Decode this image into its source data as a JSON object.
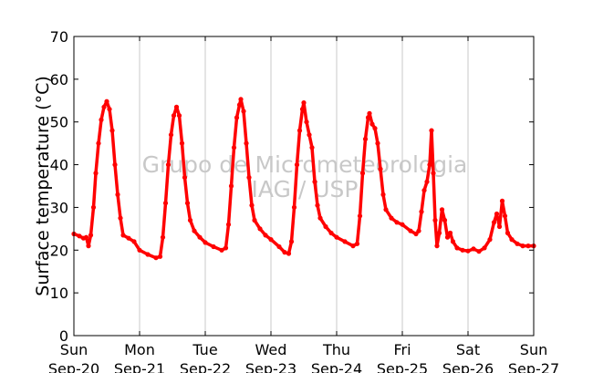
{
  "chart_data": {
    "type": "scatter",
    "title": "",
    "xlabel": "",
    "ylabel": "Surface temperature (°C)",
    "ylim": [
      0,
      70
    ],
    "yticks": [
      0,
      10,
      20,
      30,
      40,
      50,
      60,
      70
    ],
    "xticks": [
      {
        "day": "Sun",
        "date": "Sep-20"
      },
      {
        "day": "Mon",
        "date": "Sep-21"
      },
      {
        "day": "Tue",
        "date": "Sep-22"
      },
      {
        "day": "Wed",
        "date": "Sep-23"
      },
      {
        "day": "Thu",
        "date": "Sep-24"
      },
      {
        "day": "Fri",
        "date": "Sep-25"
      },
      {
        "day": "Sat",
        "date": "Sep-26"
      },
      {
        "day": "Sun",
        "date": "Sep-27"
      }
    ],
    "grid": "vertical",
    "watermark": [
      "Grupo de Micrometeorologia",
      "IAG / USP"
    ],
    "series": [
      {
        "color": "#ff0000",
        "marker": "dot",
        "points": [
          [
            "Sep-20 00:00",
            23.8
          ],
          [
            "Sep-20 02:00",
            23.3
          ],
          [
            "Sep-20 03:30",
            22.8
          ],
          [
            "Sep-20 04:30",
            23.0
          ],
          [
            "Sep-20 05:20",
            21.0
          ],
          [
            "Sep-20 06:10",
            23.5
          ],
          [
            "Sep-20 07:10",
            30.0
          ],
          [
            "Sep-20 08:00",
            38.0
          ],
          [
            "Sep-20 09:00",
            45.0
          ],
          [
            "Sep-20 10:00",
            50.5
          ],
          [
            "Sep-20 11:00",
            53.5
          ],
          [
            "Sep-20 12:00",
            54.8
          ],
          [
            "Sep-20 13:00",
            53.0
          ],
          [
            "Sep-20 14:00",
            48.0
          ],
          [
            "Sep-20 15:00",
            40.0
          ],
          [
            "Sep-20 16:00",
            33.0
          ],
          [
            "Sep-20 17:00",
            27.5
          ],
          [
            "Sep-20 18:00",
            23.5
          ],
          [
            "Sep-20 20:00",
            22.8
          ],
          [
            "Sep-20 22:00",
            22.0
          ],
          [
            "Sep-21 00:00",
            20.0
          ],
          [
            "Sep-21 03:00",
            19.0
          ],
          [
            "Sep-21 06:00",
            18.2
          ],
          [
            "Sep-21 07:30",
            18.5
          ],
          [
            "Sep-21 08:30",
            23.0
          ],
          [
            "Sep-21 09:30",
            31.0
          ],
          [
            "Sep-21 10:30",
            40.0
          ],
          [
            "Sep-21 11:30",
            47.0
          ],
          [
            "Sep-21 12:30",
            51.5
          ],
          [
            "Sep-21 13:30",
            53.5
          ],
          [
            "Sep-21 14:30",
            51.5
          ],
          [
            "Sep-21 15:30",
            45.0
          ],
          [
            "Sep-21 16:30",
            37.0
          ],
          [
            "Sep-21 17:30",
            31.0
          ],
          [
            "Sep-21 18:30",
            27.0
          ],
          [
            "Sep-21 20:00",
            24.5
          ],
          [
            "Sep-21 22:00",
            23.0
          ],
          [
            "Sep-22 00:00",
            21.8
          ],
          [
            "Sep-22 03:00",
            20.8
          ],
          [
            "Sep-22 06:00",
            20.0
          ],
          [
            "Sep-22 07:30",
            20.5
          ],
          [
            "Sep-22 08:30",
            26.0
          ],
          [
            "Sep-22 09:30",
            35.0
          ],
          [
            "Sep-22 10:30",
            44.0
          ],
          [
            "Sep-22 11:30",
            51.0
          ],
          [
            "Sep-22 12:30",
            54.0
          ],
          [
            "Sep-22 13:00",
            55.3
          ],
          [
            "Sep-22 14:00",
            52.5
          ],
          [
            "Sep-22 15:00",
            45.0
          ],
          [
            "Sep-22 16:00",
            37.0
          ],
          [
            "Sep-22 17:00",
            30.5
          ],
          [
            "Sep-22 18:00",
            27.0
          ],
          [
            "Sep-22 20:00",
            25.0
          ],
          [
            "Sep-22 22:00",
            23.5
          ],
          [
            "Sep-23 00:00",
            22.5
          ],
          [
            "Sep-23 03:00",
            20.8
          ],
          [
            "Sep-23 05:00",
            19.5
          ],
          [
            "Sep-23 06:30",
            19.2
          ],
          [
            "Sep-23 07:30",
            22.0
          ],
          [
            "Sep-23 08:30",
            30.0
          ],
          [
            "Sep-23 09:30",
            40.0
          ],
          [
            "Sep-23 10:30",
            48.0
          ],
          [
            "Sep-23 11:30",
            53.0
          ],
          [
            "Sep-23 12:00",
            54.5
          ],
          [
            "Sep-23 13:00",
            50.0
          ],
          [
            "Sep-23 14:00",
            47.0
          ],
          [
            "Sep-23 15:00",
            44.0
          ],
          [
            "Sep-23 16:00",
            36.0
          ],
          [
            "Sep-23 17:00",
            30.5
          ],
          [
            "Sep-23 18:00",
            27.5
          ],
          [
            "Sep-23 20:00",
            25.5
          ],
          [
            "Sep-23 22:00",
            24.0
          ],
          [
            "Sep-24 00:00",
            23.0
          ],
          [
            "Sep-24 03:00",
            22.0
          ],
          [
            "Sep-24 06:00",
            21.0
          ],
          [
            "Sep-24 07:30",
            21.5
          ],
          [
            "Sep-24 08:30",
            28.0
          ],
          [
            "Sep-24 09:30",
            38.0
          ],
          [
            "Sep-24 10:30",
            46.0
          ],
          [
            "Sep-24 11:30",
            51.0
          ],
          [
            "Sep-24 12:00",
            52.0
          ],
          [
            "Sep-24 13:00",
            49.5
          ],
          [
            "Sep-24 14:00",
            48.5
          ],
          [
            "Sep-24 15:00",
            45.0
          ],
          [
            "Sep-24 16:00",
            39.0
          ],
          [
            "Sep-24 17:00",
            33.0
          ],
          [
            "Sep-24 18:00",
            29.5
          ],
          [
            "Sep-24 20:00",
            27.5
          ],
          [
            "Sep-24 22:00",
            26.5
          ],
          [
            "Sep-25 00:00",
            26.0
          ],
          [
            "Sep-25 03:00",
            24.5
          ],
          [
            "Sep-25 05:00",
            23.8
          ],
          [
            "Sep-25 06:00",
            24.5
          ],
          [
            "Sep-25 07:00",
            29.0
          ],
          [
            "Sep-25 08:00",
            34.0
          ],
          [
            "Sep-25 09:00",
            36.0
          ],
          [
            "Sep-25 10:00",
            40.0
          ],
          [
            "Sep-25 10:40",
            48.0
          ],
          [
            "Sep-25 11:20",
            38.0
          ],
          [
            "Sep-25 12:00",
            27.0
          ],
          [
            "Sep-25 12:40",
            21.0
          ],
          [
            "Sep-25 13:30",
            24.0
          ],
          [
            "Sep-25 14:30",
            29.5
          ],
          [
            "Sep-25 15:30",
            27.0
          ],
          [
            "Sep-25 16:30",
            23.0
          ],
          [
            "Sep-25 17:30",
            24.0
          ],
          [
            "Sep-25 18:30",
            22.0
          ],
          [
            "Sep-25 20:00",
            20.5
          ],
          [
            "Sep-25 22:00",
            20.0
          ],
          [
            "Sep-26 00:00",
            19.8
          ],
          [
            "Sep-26 02:00",
            20.3
          ],
          [
            "Sep-26 04:00",
            19.7
          ],
          [
            "Sep-26 06:00",
            20.5
          ],
          [
            "Sep-26 08:00",
            22.5
          ],
          [
            "Sep-26 09:30",
            26.5
          ],
          [
            "Sep-26 10:30",
            28.5
          ],
          [
            "Sep-26 11:30",
            25.5
          ],
          [
            "Sep-26 12:30",
            31.5
          ],
          [
            "Sep-26 13:30",
            28.0
          ],
          [
            "Sep-26 14:30",
            24.0
          ],
          [
            "Sep-26 16:00",
            22.5
          ],
          [
            "Sep-26 18:00",
            21.5
          ],
          [
            "Sep-26 20:00",
            21.0
          ],
          [
            "Sep-26 22:00",
            21.0
          ],
          [
            "Sep-27 00:00",
            21.0
          ]
        ]
      }
    ]
  }
}
